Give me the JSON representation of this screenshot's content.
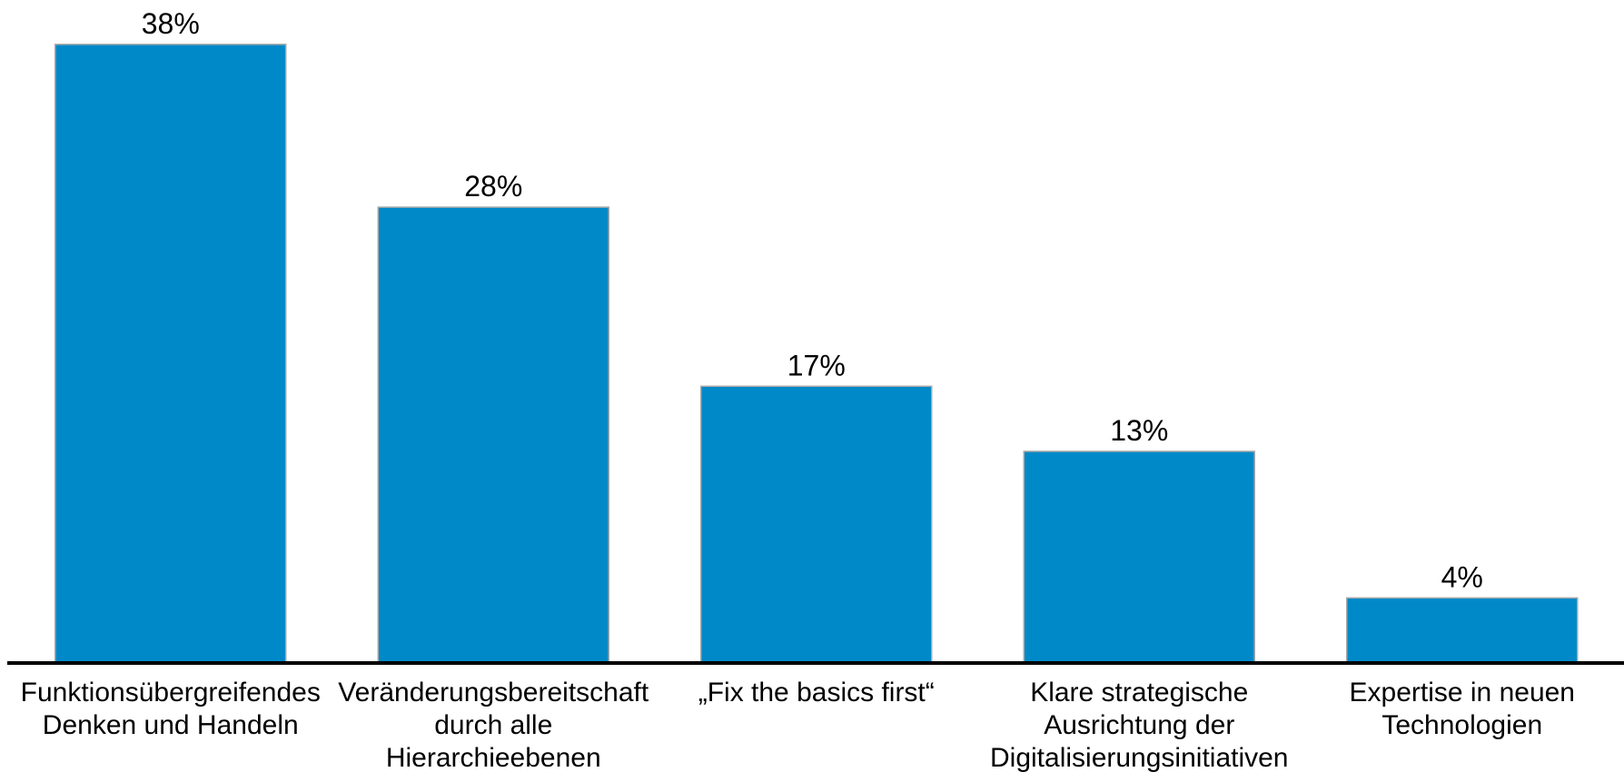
{
  "chart_data": {
    "type": "bar",
    "categories": [
      [
        "Funktionsübergreifendes",
        "Denken und Handeln"
      ],
      [
        "Veränderungsbereitschaft",
        "durch alle",
        "Hierarchieebenen"
      ],
      [
        "„Fix the basics first“"
      ],
      [
        "Klare strategische",
        "Ausrichtung der",
        "Digitalisierungsinitiativen"
      ],
      [
        "Expertise in neuen",
        "Technologien"
      ]
    ],
    "values": [
      38,
      28,
      17,
      13,
      4
    ],
    "value_labels": [
      "38%",
      "28%",
      "17%",
      "13%",
      "4%"
    ],
    "color": "#0089c8",
    "ylim": [
      0,
      40
    ]
  }
}
